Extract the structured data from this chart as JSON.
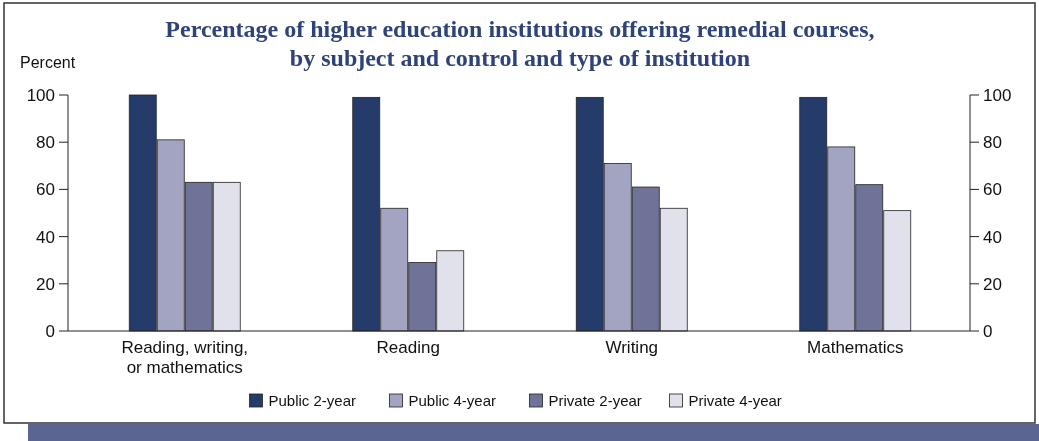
{
  "chart_data": {
    "type": "bar",
    "title": "Percentage of higher education institutions offering remedial courses,\nby subject and control and type of institution",
    "ylabel": "Percent",
    "categories": [
      "Reading, writing,\nor mathematics",
      "Reading",
      "Writing",
      "Mathematics"
    ],
    "series": [
      {
        "name": "Public 2-year",
        "color": "#253c6b",
        "values": [
          100,
          99,
          99,
          99
        ]
      },
      {
        "name": "Public 4-year",
        "color": "#a3a4c1",
        "values": [
          81,
          52,
          71,
          78
        ]
      },
      {
        "name": "Private 2-year",
        "color": "#6f7398",
        "values": [
          63,
          29,
          61,
          62
        ]
      },
      {
        "name": "Private 4-year",
        "color": "#e1e1eb",
        "values": [
          63,
          34,
          52,
          51
        ]
      }
    ],
    "ylim": [
      0,
      100
    ],
    "yticks": [
      0,
      20,
      40,
      60,
      80,
      100
    ],
    "y2lim": [
      0,
      100
    ],
    "y2ticks": [
      0,
      20,
      40,
      60,
      80,
      100
    ],
    "grid": false,
    "legend": "bottom"
  }
}
